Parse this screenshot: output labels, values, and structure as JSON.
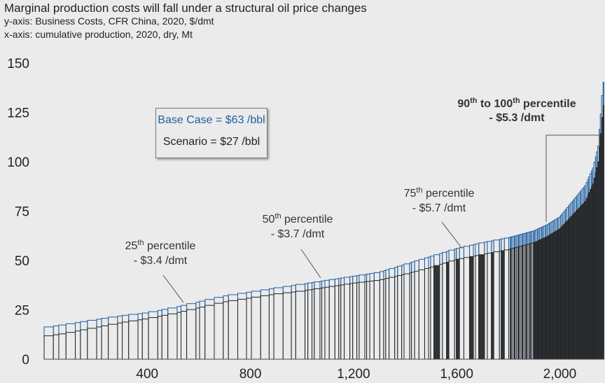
{
  "header": {
    "title": "Marginal production costs will fall under a structural oil price changes",
    "y_axis_note": "y-axis: Business Costs, CFR China, 2020, $/dmt",
    "x_axis_note": "x-axis: cumulative production, 2020, dry, Mt"
  },
  "legend": {
    "base_case": "Base Case = $63 /bbl",
    "scenario": "Scenario = $27 /bbl"
  },
  "annotations": [
    {
      "id": "p25",
      "line1": "25",
      "sup": "th",
      "line1b": " percentile",
      "line2": "- $3.4 /dmt"
    },
    {
      "id": "p50",
      "line1": "50",
      "sup": "th",
      "line1b": " percentile",
      "line2": "- $3.7 /dmt"
    },
    {
      "id": "p75",
      "line1": "75",
      "sup": "th",
      "line1b": " percentile",
      "line2": "- $5.7 /dmt"
    },
    {
      "id": "p90",
      "line1": "90",
      "sup": "th",
      "line1b": " to 100",
      "sup2": "th",
      "line1c": " percentile",
      "line2": "- $5.3 /dmt"
    }
  ],
  "colors": {
    "base_case": "#1f5fa0",
    "scenario_outline": "#222222",
    "background": "#ebebeb"
  },
  "chart_data": {
    "type": "bar",
    "subtype": "cost-curve",
    "xlim": [
      0,
      2170
    ],
    "ylim": [
      0,
      150
    ],
    "x_ticks": [
      400,
      800,
      1200,
      1600,
      2000
    ],
    "x_tick_labels": [
      "400",
      "800",
      "1,200",
      "1,600",
      "2,000"
    ],
    "y_ticks": [
      0,
      25,
      50,
      75,
      100,
      125,
      150
    ],
    "y_tick_labels": [
      "0",
      "25",
      "50",
      "75",
      "100",
      "125",
      "150"
    ],
    "grid": false,
    "series": [
      {
        "name": "Base Case = $63 /bbl",
        "color": "#1f5fa0"
      },
      {
        "name": "Scenario = $27 /bbl",
        "color": "#222222"
      }
    ],
    "curve_points": [
      {
        "x": 0,
        "base": 16.0,
        "scenario": 11.5
      },
      {
        "x": 80,
        "base": 17.5,
        "scenario": 13.0
      },
      {
        "x": 200,
        "base": 20.0,
        "scenario": 16.0
      },
      {
        "x": 300,
        "base": 22.0,
        "scenario": 18.5
      },
      {
        "x": 400,
        "base": 23.5,
        "scenario": 20.5
      },
      {
        "x": 500,
        "base": 26.0,
        "scenario": 23.0
      },
      {
        "x": 600,
        "base": 29.0,
        "scenario": 26.0
      },
      {
        "x": 700,
        "base": 32.0,
        "scenario": 29.0
      },
      {
        "x": 800,
        "base": 34.0,
        "scenario": 31.0
      },
      {
        "x": 900,
        "base": 36.0,
        "scenario": 33.0
      },
      {
        "x": 1000,
        "base": 38.0,
        "scenario": 34.5
      },
      {
        "x": 1100,
        "base": 40.0,
        "scenario": 36.5
      },
      {
        "x": 1200,
        "base": 42.0,
        "scenario": 38.5
      },
      {
        "x": 1300,
        "base": 44.0,
        "scenario": 40.0
      },
      {
        "x": 1400,
        "base": 48.0,
        "scenario": 43.0
      },
      {
        "x": 1500,
        "base": 52.0,
        "scenario": 46.5
      },
      {
        "x": 1600,
        "base": 56.0,
        "scenario": 50.5
      },
      {
        "x": 1700,
        "base": 59.0,
        "scenario": 53.0
      },
      {
        "x": 1800,
        "base": 61.5,
        "scenario": 55.5
      },
      {
        "x": 1900,
        "base": 65.0,
        "scenario": 59.0
      },
      {
        "x": 1950,
        "base": 68.0,
        "scenario": 62.0
      },
      {
        "x": 2000,
        "base": 72.0,
        "scenario": 66.0
      },
      {
        "x": 2050,
        "base": 80.0,
        "scenario": 73.0
      },
      {
        "x": 2100,
        "base": 88.0,
        "scenario": 80.0
      },
      {
        "x": 2130,
        "base": 97.0,
        "scenario": 89.0
      },
      {
        "x": 2150,
        "base": 108.0,
        "scenario": 100.0
      },
      {
        "x": 2160,
        "base": 125.0,
        "scenario": 115.0
      },
      {
        "x": 2170,
        "base": 142.0,
        "scenario": 130.0
      }
    ]
  }
}
